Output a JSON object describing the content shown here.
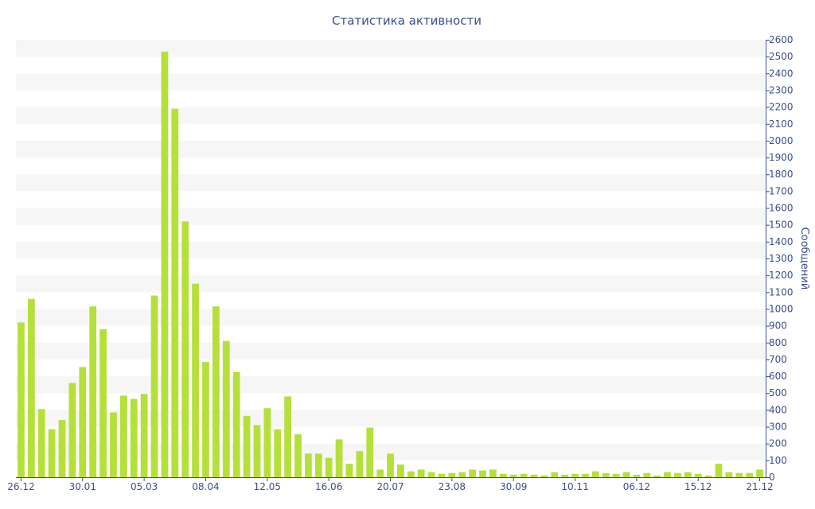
{
  "chart_data": {
    "type": "bar",
    "title": "Статистика активности",
    "ylabel": "Сообщений",
    "xlabel": "",
    "ylim": [
      0,
      2600
    ],
    "y_ticks": [
      0,
      100,
      200,
      300,
      400,
      500,
      600,
      700,
      800,
      900,
      1000,
      1100,
      1200,
      1300,
      1400,
      1500,
      1600,
      1700,
      1800,
      1900,
      2000,
      2100,
      2200,
      2300,
      2400,
      2500,
      2600
    ],
    "y_axis_position": "right",
    "grid": "alternating horizontal bands",
    "x_tick_labels": [
      {
        "label": "26.12",
        "index": 0
      },
      {
        "label": "30.01",
        "index": 6
      },
      {
        "label": "05.03",
        "index": 12
      },
      {
        "label": "08.04",
        "index": 18
      },
      {
        "label": "12.05",
        "index": 24
      },
      {
        "label": "16.06",
        "index": 30
      },
      {
        "label": "20.07",
        "index": 36
      },
      {
        "label": "23.08",
        "index": 42
      },
      {
        "label": "30.09",
        "index": 48
      },
      {
        "label": "10.11",
        "index": 54
      },
      {
        "label": "06.12",
        "index": 60
      },
      {
        "label": "15.12",
        "index": 66
      },
      {
        "label": "21.12",
        "index": 72
      }
    ],
    "series": [
      {
        "color": "#b5e03a",
        "values": [
          920,
          1060,
          405,
          285,
          340,
          560,
          655,
          1015,
          880,
          385,
          485,
          465,
          495,
          1080,
          2530,
          2190,
          1520,
          1150,
          685,
          1015,
          810,
          625,
          365,
          310,
          410,
          285,
          480,
          255,
          140,
          140,
          115,
          225,
          80,
          155,
          295,
          45,
          140,
          75,
          35,
          45,
          30,
          20,
          25,
          30,
          45,
          40,
          45,
          20,
          15,
          20,
          15,
          10,
          30,
          15,
          20,
          20,
          35,
          25,
          20,
          30,
          15,
          25,
          10,
          30,
          25,
          30,
          20,
          10,
          80,
          30,
          25,
          25,
          45
        ]
      }
    ]
  },
  "colors": {
    "axis": "#3d4d8f",
    "band": "#f6f6f6",
    "bar": "#b5e03a"
  }
}
